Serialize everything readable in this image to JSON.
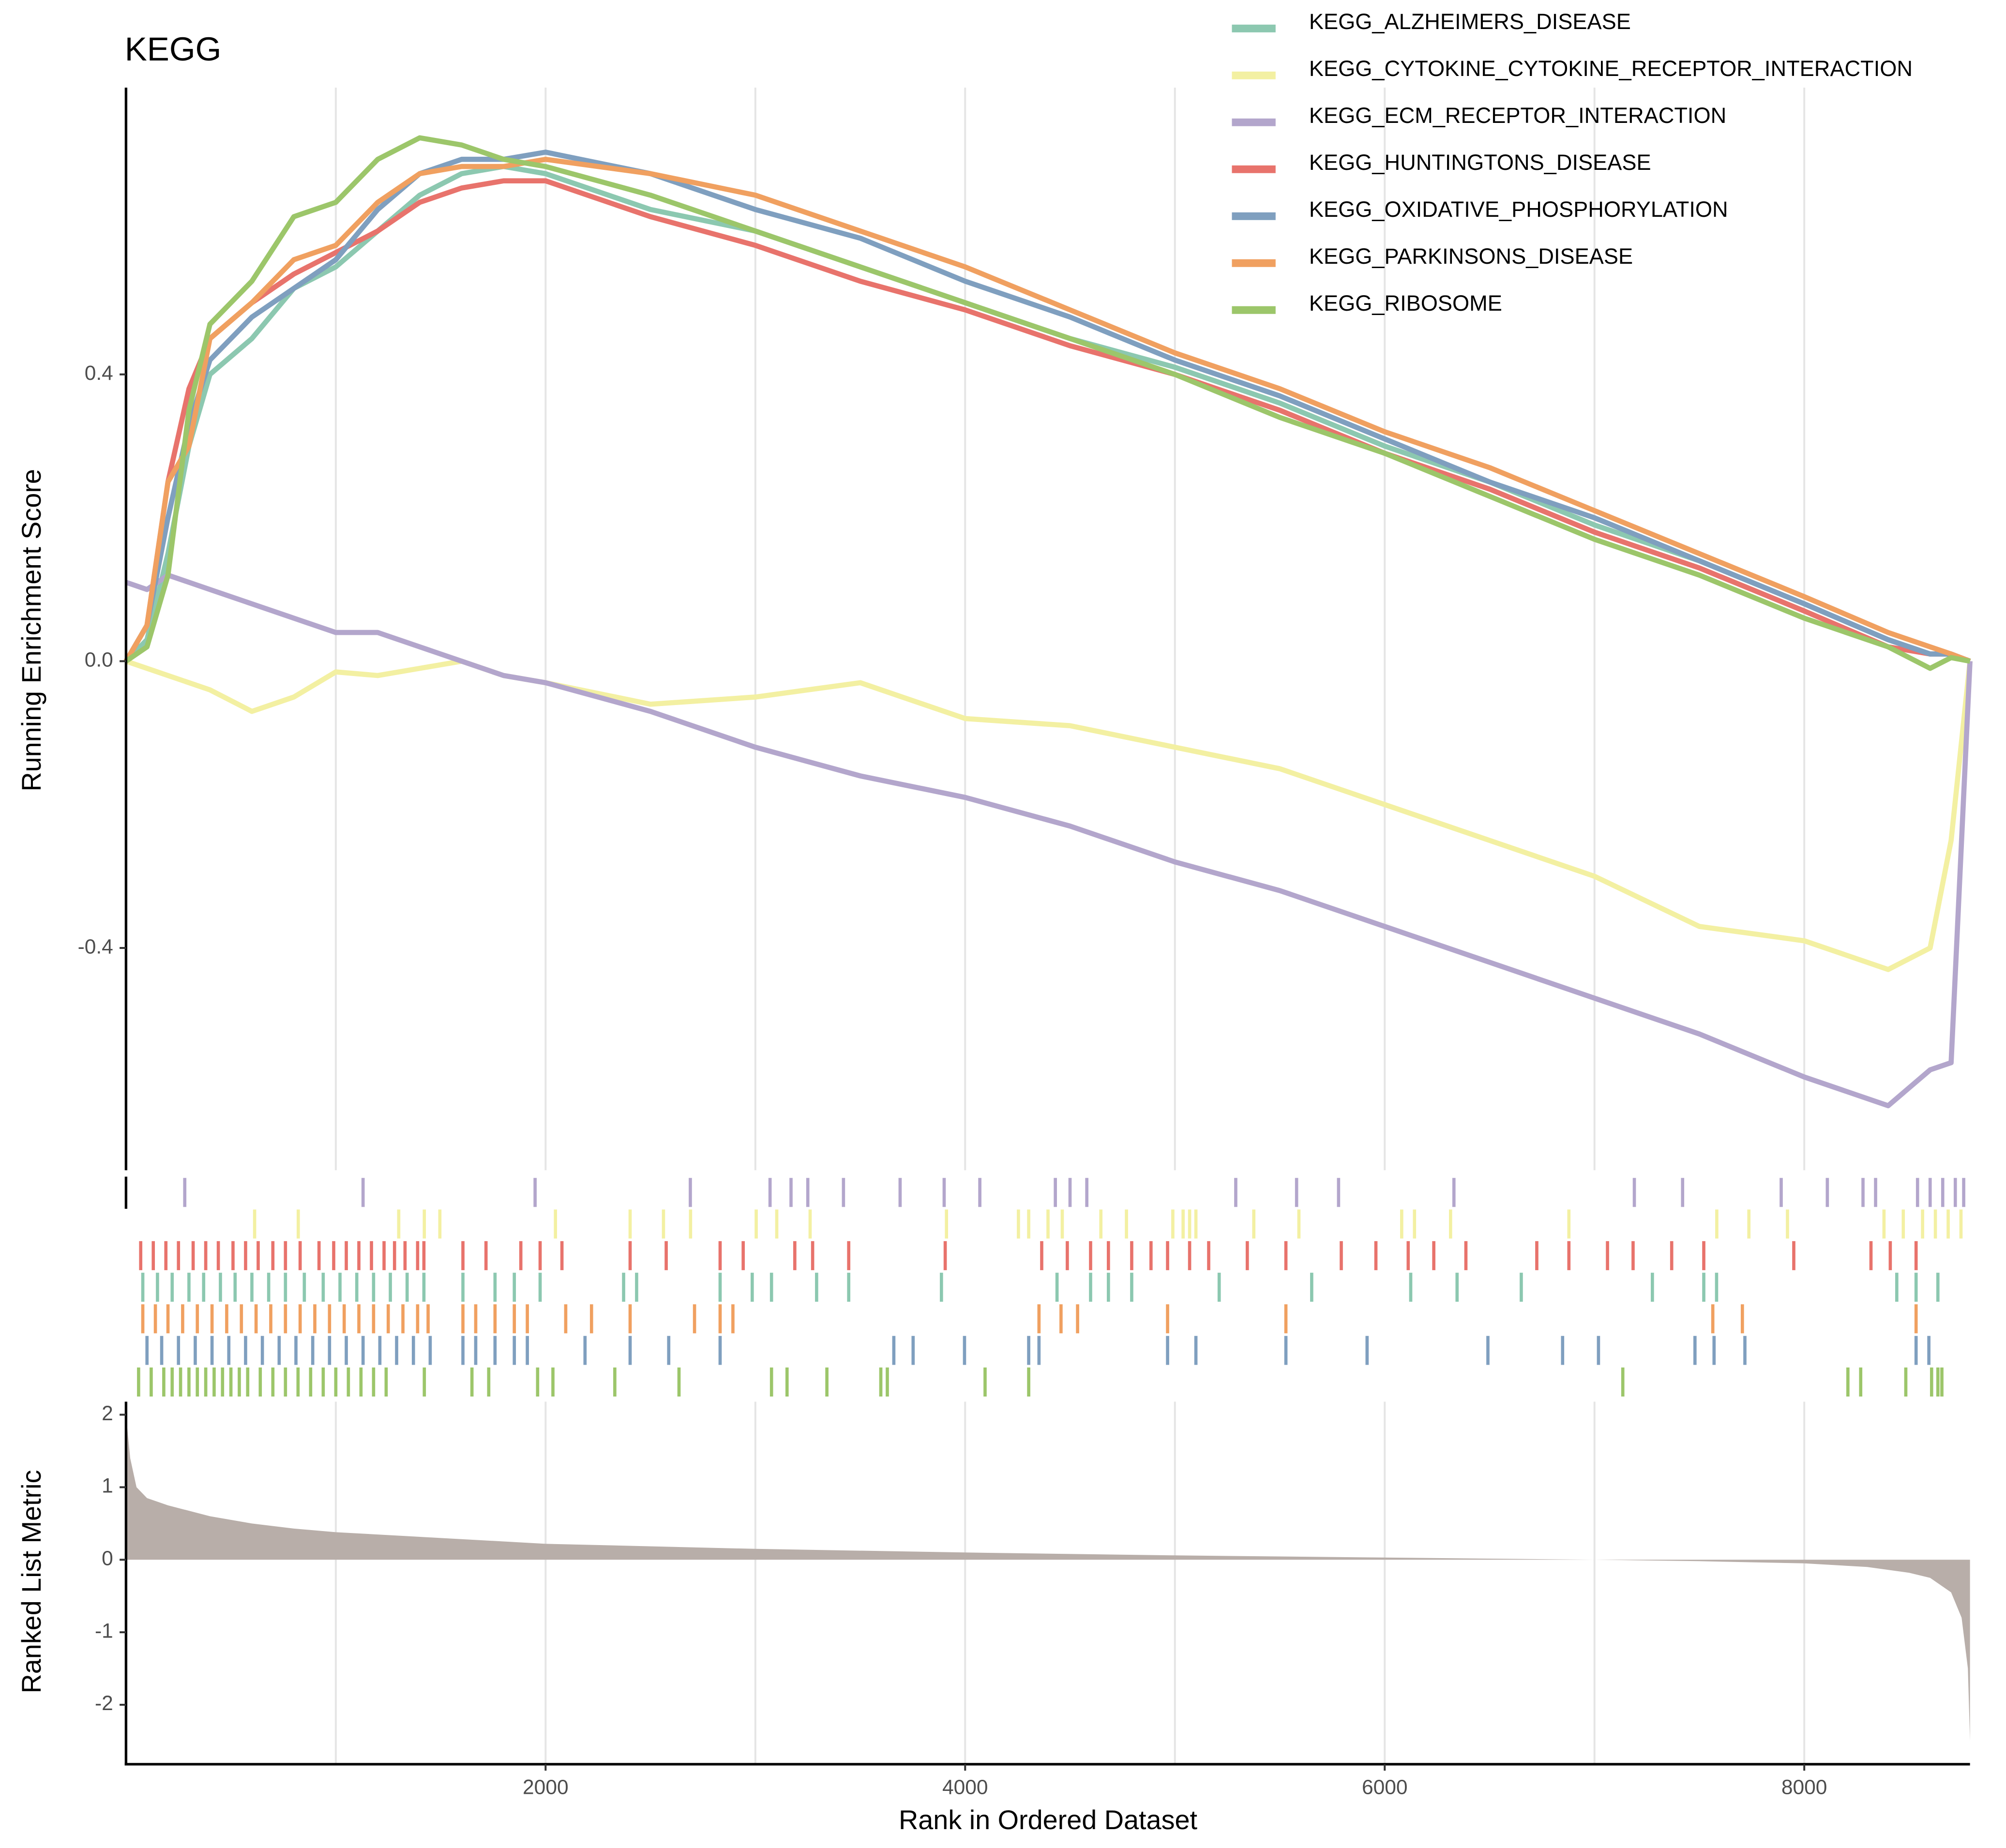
{
  "chart_data": [
    {
      "type": "line",
      "title": "KEGG",
      "y_label": "Running Enrichment Score",
      "xlim": [
        0,
        8790
      ],
      "ylim": [
        -0.71,
        0.8
      ],
      "yticks": [
        0.4,
        {
          "value": 0,
          "label": "0.0"
        },
        -0.4
      ],
      "x": [
        0,
        100,
        200,
        300,
        400,
        600,
        800,
        1000,
        1200,
        1400,
        1600,
        1800,
        2000,
        2500,
        3000,
        3500,
        4000,
        4500,
        5000,
        5500,
        6000,
        6500,
        7000,
        7500,
        8000,
        8400,
        8600,
        8700,
        8790
      ],
      "series": [
        {
          "name": "KEGG_ALZHEIMERS_DISEASE",
          "color": "#8cc8b0",
          "values": [
            0,
            0.03,
            0.15,
            0.3,
            0.4,
            0.45,
            0.52,
            0.55,
            0.6,
            0.65,
            0.68,
            0.69,
            0.68,
            0.63,
            0.6,
            0.55,
            0.5,
            0.45,
            0.41,
            0.36,
            0.3,
            0.25,
            0.19,
            0.14,
            0.08,
            0.03,
            0.01,
            0.01,
            0
          ]
        },
        {
          "name": "KEGG_CYTOKINE_CYTOKINE_RECEPTOR_INTERACTION",
          "color": "#f3f0a2",
          "values": [
            0,
            -0.01,
            -0.02,
            -0.03,
            -0.04,
            -0.07,
            -0.05,
            -0.015,
            -0.02,
            -0.01,
            0,
            -0.02,
            -0.03,
            -0.06,
            -0.05,
            -0.03,
            -0.08,
            -0.09,
            -0.12,
            -0.15,
            -0.2,
            -0.25,
            -0.3,
            -0.37,
            -0.39,
            -0.43,
            -0.4,
            -0.25,
            0
          ]
        },
        {
          "name": "KEGG_ECM_RECEPTOR_INTERACTION",
          "color": "#b3a6cc",
          "values": [
            0.11,
            0.1,
            0.12,
            0.11,
            0.1,
            0.08,
            0.06,
            0.04,
            0.04,
            0.02,
            0,
            -0.02,
            -0.03,
            -0.07,
            -0.12,
            -0.16,
            -0.19,
            -0.23,
            -0.28,
            -0.32,
            -0.37,
            -0.42,
            -0.47,
            -0.52,
            -0.58,
            -0.62,
            -0.57,
            -0.56,
            0
          ]
        },
        {
          "name": "KEGG_HUNTINGTONS_DISEASE",
          "color": "#e8736c",
          "values": [
            0,
            0.05,
            0.25,
            0.38,
            0.45,
            0.5,
            0.54,
            0.57,
            0.6,
            0.64,
            0.66,
            0.67,
            0.67,
            0.62,
            0.58,
            0.53,
            0.49,
            0.44,
            0.4,
            0.35,
            0.29,
            0.24,
            0.18,
            0.13,
            0.07,
            0.02,
            0.01,
            0.01,
            0
          ]
        },
        {
          "name": "KEGG_OXIDATIVE_PHOSPHORYLATION",
          "color": "#7f9fbf",
          "values": [
            0,
            0.05,
            0.2,
            0.33,
            0.42,
            0.48,
            0.52,
            0.56,
            0.63,
            0.68,
            0.7,
            0.7,
            0.71,
            0.68,
            0.63,
            0.59,
            0.53,
            0.48,
            0.42,
            0.37,
            0.31,
            0.25,
            0.2,
            0.14,
            0.08,
            0.03,
            0.01,
            0.01,
            0
          ]
        },
        {
          "name": "KEGG_PARKINSONS_DISEASE",
          "color": "#f0a060",
          "values": [
            0,
            0.05,
            0.25,
            0.3,
            0.45,
            0.5,
            0.56,
            0.58,
            0.64,
            0.68,
            0.69,
            0.69,
            0.7,
            0.68,
            0.65,
            0.6,
            0.55,
            0.49,
            0.43,
            0.38,
            0.32,
            0.27,
            0.21,
            0.15,
            0.09,
            0.04,
            0.02,
            0.01,
            0
          ]
        },
        {
          "name": "KEGG_RIBOSOME",
          "color": "#9cc66a",
          "values": [
            0,
            0.02,
            0.12,
            0.35,
            0.47,
            0.53,
            0.62,
            0.64,
            0.7,
            0.73,
            0.72,
            0.7,
            0.69,
            0.65,
            0.6,
            0.55,
            0.5,
            0.45,
            0.4,
            0.34,
            0.29,
            0.23,
            0.17,
            0.12,
            0.06,
            0.02,
            -0.01,
            0.005,
            0
          ]
        }
      ]
    },
    {
      "type": "rug",
      "xlim": [
        0,
        8790
      ],
      "series": [
        {
          "color": "#b3a6cc",
          "x": [
            280,
            1130,
            1950,
            2690,
            3070,
            3170,
            3250,
            3420,
            3690,
            3900,
            4070,
            4430,
            4500,
            4580,
            5290,
            5580,
            5780,
            6330,
            7190,
            7420,
            7890,
            8110,
            8280,
            8340,
            8540,
            8600,
            8660,
            8720,
            8760
          ]
        },
        {
          "color": "#f3f0a2",
          "x": [
            613,
            821,
            1300,
            1422,
            1496,
            2047,
            2403,
            2562,
            2691,
            3004,
            3102,
            3261,
            3911,
            4254,
            4303,
            4395,
            4463,
            4647,
            4769,
            4990,
            5039,
            5070,
            5100,
            5376,
            5591,
            6081,
            6142,
            6314,
            6878,
            7583,
            7736,
            7920,
            8380,
            8472,
            8564,
            8625,
            8686,
            8747
          ]
        },
        {
          "color": "#e8736c",
          "x": [
            70,
            130,
            190,
            250,
            320,
            380,
            440,
            510,
            570,
            630,
            700,
            760,
            830,
            920,
            990,
            1050,
            1110,
            1170,
            1230,
            1280,
            1330,
            1390,
            1420,
            1606,
            1716,
            1882,
            1974,
            2078,
            2403,
            2575,
            2832,
            2942,
            3188,
            3273,
            3445,
            3905,
            4365,
            4487,
            4598,
            4683,
            4794,
            4886,
            4965,
            5070,
            5161,
            5345,
            5529,
            5793,
            5958,
            6112,
            6234,
            6387,
            6725,
            6878,
            7062,
            7184,
            7368,
            7521,
            7950,
            8318,
            8410,
            8533
          ]
        },
        {
          "color": "#8cc8b0",
          "x": [
            80,
            150,
            220,
            300,
            370,
            450,
            520,
            600,
            680,
            760,
            850,
            940,
            1020,
            1100,
            1180,
            1260,
            1340,
            1420,
            1606,
            1759,
            1851,
            1974,
            2372,
            2434,
            2832,
            2985,
            3077,
            3292,
            3445,
            3887,
            4438,
            4598,
            4683,
            4794,
            5211,
            5652,
            6124,
            6345,
            6651,
            7276,
            7521,
            7582,
            8441,
            8533,
            8637
          ]
        },
        {
          "color": "#f0a060",
          "x": [
            80,
            140,
            200,
            270,
            340,
            410,
            480,
            550,
            620,
            690,
            760,
            830,
            900,
            970,
            1040,
            1110,
            1180,
            1250,
            1320,
            1390,
            1440,
            1606,
            1667,
            1759,
            1851,
            1913,
            2096,
            2219,
            2403,
            2710,
            2832,
            2893,
            4352,
            4457,
            4536,
            4965,
            5529,
            7564,
            7705,
            8533
          ]
        },
        {
          "color": "#7f9fbf",
          "x": [
            100,
            170,
            250,
            330,
            410,
            490,
            570,
            650,
            730,
            810,
            890,
            970,
            1050,
            1130,
            1210,
            1290,
            1370,
            1450,
            1606,
            1667,
            1759,
            1851,
            1913,
            2188,
            2403,
            2587,
            2832,
            3660,
            3752,
            3997,
            4303,
            4352,
            4965,
            5100,
            5529,
            5916,
            6492,
            6848,
            7019,
            7479,
            7570,
            7717,
            8533,
            8594
          ]
        },
        {
          "color": "#9cc66a",
          "x": [
            60,
            120,
            180,
            220,
            260,
            300,
            340,
            380,
            420,
            460,
            500,
            540,
            580,
            640,
            700,
            760,
            820,
            880,
            940,
            1000,
            1060,
            1120,
            1180,
            1240,
            1422,
            1649,
            1729,
            1962,
            2035,
            2330,
            2636,
            3077,
            3151,
            3341,
            3598,
            3629,
            4095,
            4303,
            7135,
            8208,
            8269,
            8484,
            8607,
            8637,
            8656
          ]
        }
      ]
    },
    {
      "type": "area",
      "y_label": "Ranked List Metric",
      "x_label": "Rank in Ordered Dataset",
      "color": "#b8aea9",
      "xlim": [
        0,
        8790
      ],
      "ylim": [
        -2.82,
        2.18
      ],
      "xticks": [
        2000,
        4000,
        6000,
        8000
      ],
      "x_gridlines": [
        1000,
        2000,
        3000,
        4000,
        5000,
        6000,
        7000,
        8000
      ],
      "yticks": [
        2,
        1,
        0,
        -1,
        -2
      ],
      "x": [
        0,
        20,
        50,
        100,
        200,
        400,
        600,
        800,
        1000,
        1500,
        2000,
        3000,
        4000,
        5000,
        6000,
        7000,
        7500,
        8000,
        8300,
        8500,
        8600,
        8700,
        8750,
        8780,
        8790
      ],
      "values": [
        2.0,
        1.4,
        1.0,
        0.85,
        0.75,
        0.6,
        0.5,
        0.43,
        0.38,
        0.3,
        0.22,
        0.15,
        0.1,
        0.06,
        0.03,
        0,
        -0.02,
        -0.05,
        -0.1,
        -0.18,
        -0.25,
        -0.45,
        -0.8,
        -1.5,
        -2.5
      ]
    }
  ]
}
